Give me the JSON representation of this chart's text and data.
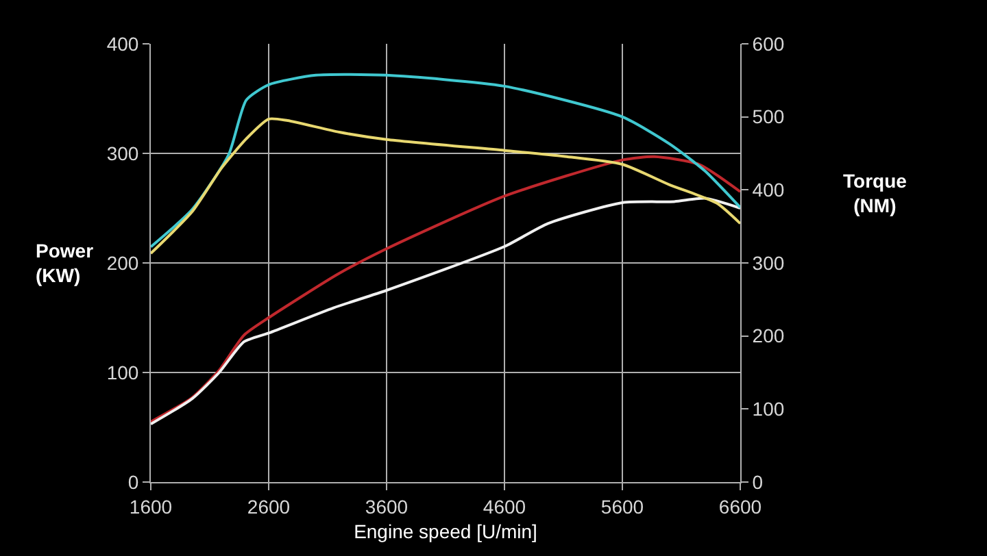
{
  "chart_data": {
    "type": "line",
    "ylabel": "Power\n(KW)",
    "y2label": "Torque\n(NM)",
    "xlabel": "Engine speed [U/min]",
    "xlim": [
      1600,
      6600
    ],
    "xticks": [
      1600,
      2600,
      3600,
      4600,
      5600,
      6600
    ],
    "ylim": [
      0,
      400
    ],
    "yticks": [
      0,
      100,
      200,
      300,
      400
    ],
    "y2lim": [
      0,
      600
    ],
    "y2ticks": [
      0,
      100,
      200,
      300,
      400,
      500,
      600
    ],
    "grid": true,
    "marker": "none",
    "line_style": "solid",
    "series": [
      {
        "color": "#c0282d",
        "x": [
          1600,
          1950,
          2180,
          2390,
          2600,
          3190,
          3600,
          4600,
          5600,
          5870,
          6250,
          6600
        ],
        "values": [
          55,
          77,
          102,
          134,
          150,
          190,
          213,
          261,
          294,
          297,
          290,
          265
        ]
      },
      {
        "color": "#f0f0f0",
        "x": [
          1600,
          1950,
          2180,
          2390,
          2600,
          3150,
          3600,
          4600,
          4970,
          5600,
          6040,
          6300,
          6600
        ],
        "values": [
          53,
          76,
          100,
          128,
          136,
          159,
          175,
          215,
          236,
          255,
          256,
          259,
          250
        ]
      },
      {
        "color": "#40c8d0",
        "axis": "y2",
        "x": [
          1600,
          1950,
          2260,
          2410,
          2600,
          3000,
          3600,
          4600,
          5600,
          6000,
          6300,
          6600
        ],
        "values": [
          322,
          373,
          448,
          523,
          544,
          557,
          557,
          542,
          500,
          463,
          426,
          376
        ]
      },
      {
        "color": "#e8d870",
        "axis": "y2",
        "x": [
          1600,
          1950,
          2200,
          2410,
          2600,
          2760,
          3200,
          3600,
          4600,
          5100,
          5600,
          6000,
          6400,
          6600
        ],
        "values": [
          313,
          370,
          430,
          470,
          497,
          495,
          479,
          469,
          454,
          446,
          435,
          407,
          382,
          354
        ]
      }
    ]
  }
}
